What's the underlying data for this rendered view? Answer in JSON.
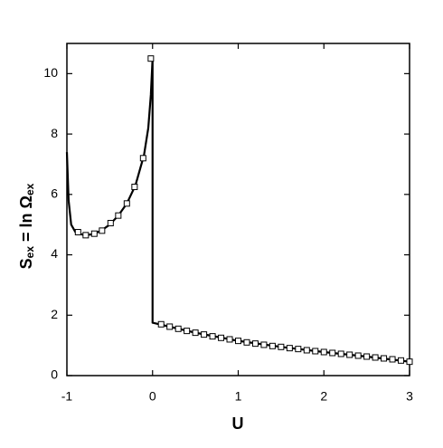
{
  "chart_data": {
    "type": "line",
    "xlabel": "U",
    "ylabel": [
      "S",
      "ex",
      " = ln Ω",
      "ex"
    ],
    "xlim": [
      -1,
      3
    ],
    "xticks": [
      -1,
      0,
      1,
      2,
      3
    ],
    "ylim": [
      0,
      11
    ],
    "yticks": [
      0,
      2,
      4,
      6,
      8,
      10
    ],
    "series": [
      {
        "color": "#000000",
        "marker": "none",
        "x": [
          -1,
          -0.98,
          -0.95,
          -0.9,
          -0.8,
          -0.7,
          -0.6,
          -0.5,
          -0.4,
          -0.3,
          -0.2,
          -0.1,
          -0.05,
          -0.02,
          0,
          0,
          0.5,
          1,
          1.5,
          2,
          2.5,
          3
        ],
        "values": [
          7.4,
          5.8,
          5.0,
          4.75,
          4.65,
          4.68,
          4.8,
          5.0,
          5.3,
          5.7,
          6.3,
          7.3,
          8.2,
          9.3,
          10.5,
          1.75,
          1.42,
          1.15,
          0.95,
          0.78,
          0.63,
          0.46
        ]
      },
      {
        "color": "#000000",
        "marker": "square",
        "x": [
          -0.87,
          -0.78,
          -0.68,
          -0.59,
          -0.49,
          -0.4,
          -0.3,
          -0.21,
          -0.11,
          -0.02,
          0.1,
          0.2,
          0.3,
          0.4,
          0.5,
          0.6,
          0.7,
          0.8,
          0.9,
          1.0,
          1.1,
          1.2,
          1.3,
          1.4,
          1.5,
          1.6,
          1.7,
          1.8,
          1.9,
          2.0,
          2.1,
          2.2,
          2.3,
          2.4,
          2.5,
          2.6,
          2.7,
          2.8,
          2.9,
          3.0
        ],
        "values": [
          4.75,
          4.65,
          4.7,
          4.8,
          5.05,
          5.3,
          5.7,
          6.25,
          7.2,
          10.5,
          1.7,
          1.62,
          1.55,
          1.48,
          1.42,
          1.36,
          1.3,
          1.25,
          1.2,
          1.15,
          1.1,
          1.06,
          1.02,
          0.98,
          0.95,
          0.91,
          0.88,
          0.84,
          0.81,
          0.78,
          0.75,
          0.72,
          0.69,
          0.66,
          0.63,
          0.6,
          0.57,
          0.54,
          0.5,
          0.46
        ]
      }
    ]
  }
}
